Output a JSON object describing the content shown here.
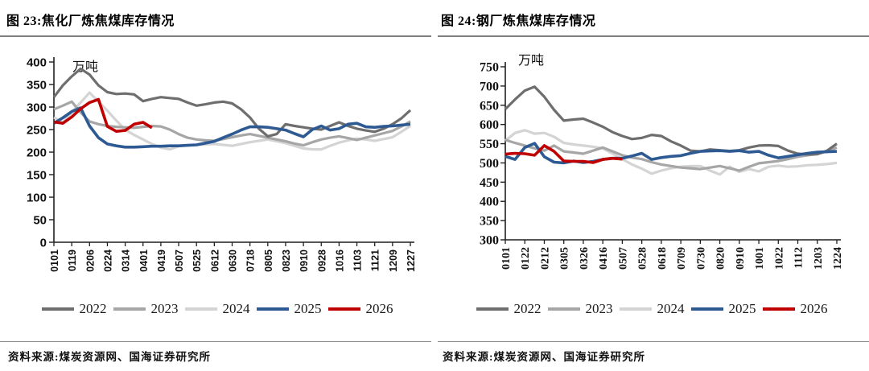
{
  "figures": [
    {
      "title": "图 23:焦化厂炼焦煤库存情况",
      "unit_label": "万吨",
      "source": "资料来源:煤炭资源网、国海证券研究所",
      "chart_data": {
        "type": "line",
        "title": "焦化厂炼焦煤库存情况",
        "ylabel": "万吨",
        "ylim": [
          0,
          400
        ],
        "ytick_step": 50,
        "grid": false,
        "legend_position": "bottom",
        "x_ticklabels": [
          "0101",
          "0119",
          "0206",
          "0224",
          "0314",
          "0401",
          "0419",
          "0507",
          "0525",
          "0612",
          "0630",
          "0718",
          "0805",
          "0823",
          "0910",
          "0928",
          "1016",
          "1103",
          "1121",
          "1209",
          "1227"
        ],
        "samples_per_tick_interval": 2,
        "series": [
          {
            "name": "2022",
            "color": "#6e6e6e",
            "width": 3.2,
            "values": [
              322,
              348,
              368,
              385,
              372,
              348,
              333,
              329,
              330,
              328,
              313,
              318,
              322,
              320,
              318,
              310,
              303,
              306,
              310,
              312,
              308,
              295,
              277,
              252,
              235,
              240,
              262,
              258,
              255,
              252,
              250,
              258,
              266,
              258,
              252,
              248,
              245,
              252,
              262,
              275,
              293
            ]
          },
          {
            "name": "2023",
            "color": "#a6a6a6",
            "width": 3.2,
            "values": [
              295,
              303,
              312,
              288,
              268,
              262,
              258,
              256,
              255,
              254,
              256,
              258,
              257,
              250,
              240,
              232,
              228,
              226,
              225,
              229,
              233,
              237,
              240,
              236,
              232,
              228,
              224,
              219,
              215,
              222,
              228,
              232,
              235,
              231,
              227,
              232,
              237,
              242,
              247,
              257,
              268
            ]
          },
          {
            "name": "2024",
            "color": "#d4d4d4",
            "width": 3.2,
            "values": [
              277,
              266,
              288,
              310,
              332,
              312,
              292,
              270,
              250,
              238,
              228,
              218,
              210,
              206,
              213,
              215,
              216,
              217,
              218,
              216,
              214,
              218,
              222,
              225,
              228,
              224,
              220,
              214,
              208,
              206,
              206,
              214,
              221,
              226,
              230,
              228,
              225,
              229,
              233,
              245,
              258
            ]
          },
          {
            "name": "2025",
            "color": "#2e5a94",
            "width": 3.6,
            "values": [
              264,
              276,
              290,
              298,
              258,
              232,
              218,
              214,
              211,
              211,
              212,
              213,
              213,
              214,
              214,
              215,
              216,
              220,
              224,
              232,
              240,
              249,
              256,
              256,
              255,
              252,
              249,
              241,
              234,
              250,
              258,
              249,
              252,
              262,
              264,
              256,
              255,
              257,
              258,
              260,
              262
            ]
          },
          {
            "name": "2026",
            "color": "#c00000",
            "width": 3.6,
            "values": [
              267,
              264,
              278,
              296,
              310,
              317,
              257,
              246,
              248,
              262,
              266,
              254
            ]
          }
        ]
      }
    },
    {
      "title": "图 24:钢厂炼焦煤库存情况",
      "unit_label": "万吨",
      "source": "资料来源:煤炭资源网、国海证券研究所",
      "chart_data": {
        "type": "line",
        "title": "钢厂炼焦煤库存情况",
        "ylabel": "万吨",
        "ylim": [
          300,
          750
        ],
        "ytick_step": 50,
        "grid": false,
        "legend_position": "bottom",
        "x_ticklabels": [
          "0101",
          "0122",
          "0212",
          "0305",
          "0326",
          "0416",
          "0507",
          "0528",
          "0618",
          "0709",
          "0730",
          "0820",
          "0910",
          "1001",
          "1022",
          "1112",
          "1203",
          "1224"
        ],
        "samples_per_tick_interval": 2,
        "series": [
          {
            "name": "2022",
            "color": "#6e6e6e",
            "width": 3.2,
            "values": [
              640,
              665,
              688,
              698,
              672,
              638,
              610,
              613,
              615,
              605,
              594,
              580,
              570,
              562,
              565,
              573,
              570,
              556,
              545,
              532,
              530,
              535,
              533,
              531,
              533,
              540,
              545,
              546,
              544,
              532,
              524,
              522,
              523,
              532,
              550
            ]
          },
          {
            "name": "2023",
            "color": "#a6a6a6",
            "width": 3.2,
            "values": [
              560,
              552,
              545,
              538,
              532,
              545,
              530,
              527,
              524,
              532,
              540,
              530,
              520,
              514,
              510,
              502,
              496,
              492,
              488,
              486,
              484,
              488,
              492,
              486,
              480,
              490,
              499,
              502,
              505,
              510,
              516,
              520,
              523,
              530,
              540
            ]
          },
          {
            "name": "2024",
            "color": "#d4d4d4",
            "width": 3.2,
            "values": [
              558,
              578,
              585,
              576,
              578,
              568,
              552,
              548,
              545,
              542,
              538,
              524,
              510,
              496,
              485,
              472,
              480,
              486,
              490,
              492,
              492,
              480,
              470,
              490,
              477,
              484,
              478,
              490,
              493,
              490,
              491,
              494,
              495,
              497,
              500
            ]
          },
          {
            "name": "2025",
            "color": "#2e5a94",
            "width": 3.6,
            "values": [
              517,
              509,
              540,
              551,
              516,
              502,
              500,
              505,
              501,
              504,
              509,
              512,
              512,
              518,
              525,
              509,
              514,
              517,
              519,
              525,
              530,
              531,
              532,
              530,
              532,
              528,
              530,
              520,
              513,
              517,
              521,
              525,
              528,
              529,
              530
            ]
          },
          {
            "name": "2026",
            "color": "#c00000",
            "width": 3.6,
            "values": [
              523,
              525,
              524,
              520,
              545,
              530,
              505,
              504,
              504,
              501,
              509,
              512,
              510
            ]
          }
        ]
      }
    }
  ]
}
